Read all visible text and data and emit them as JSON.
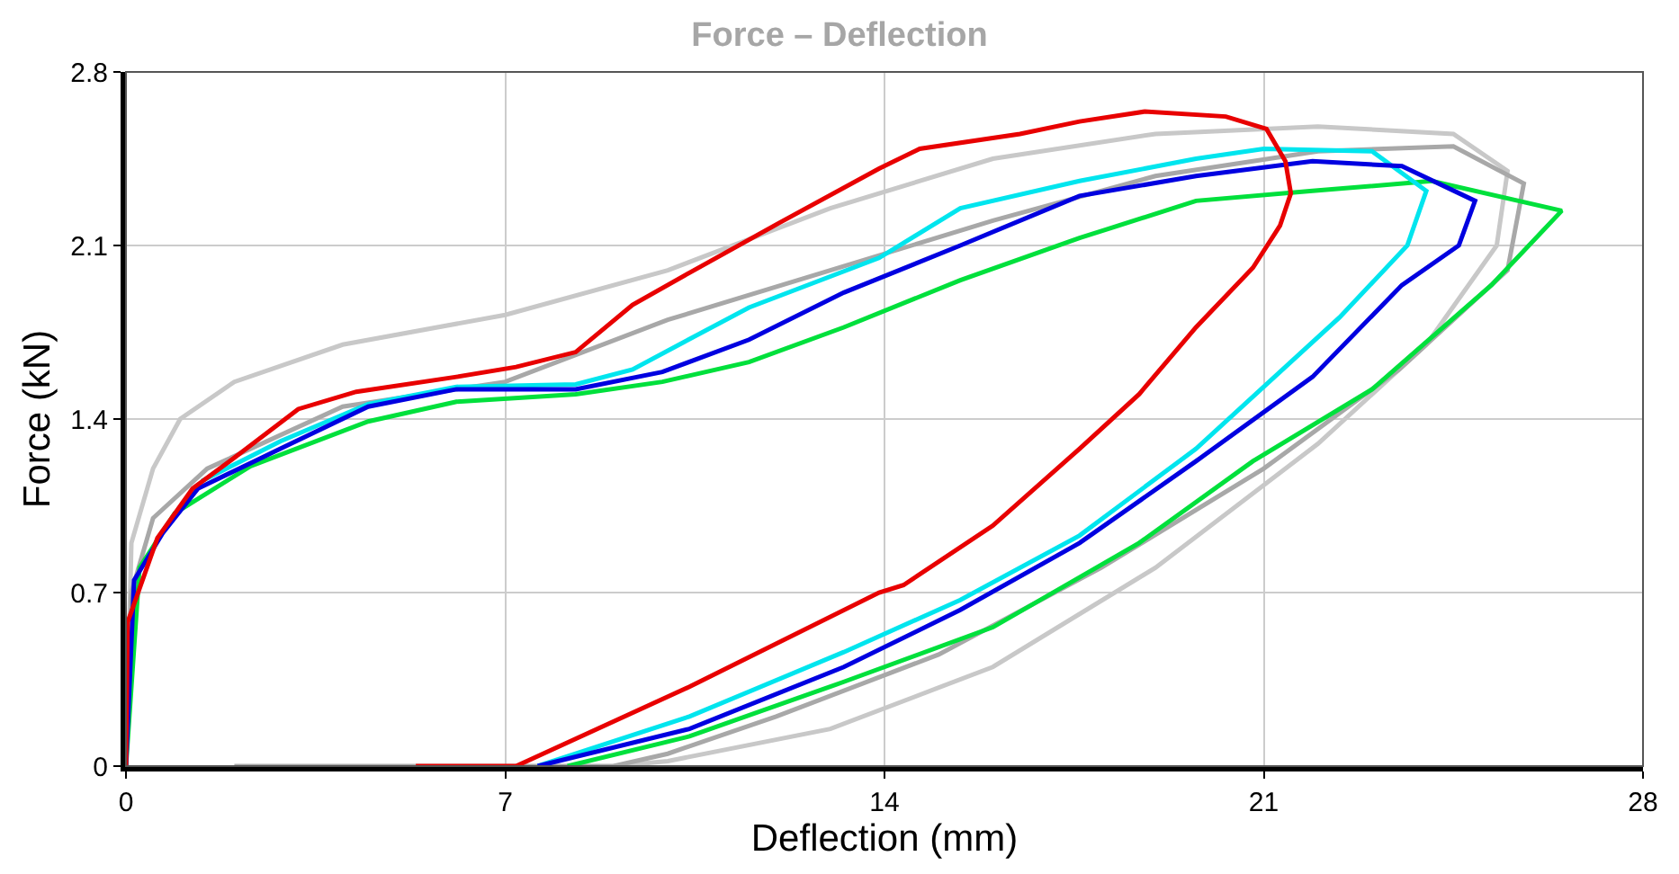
{
  "chart_data": {
    "type": "line",
    "title": "Force – Deflection",
    "xlabel": "Deflection (mm)",
    "ylabel": "Force (kN)",
    "xlim": [
      0,
      28
    ],
    "ylim": [
      0,
      2.8
    ],
    "xticks": [
      0,
      7,
      14,
      21,
      28
    ],
    "yticks": [
      0,
      0.7,
      1.4,
      2.1,
      2.8
    ],
    "grid": true,
    "marker": "none",
    "line_style": "solid",
    "series": [
      {
        "color": "#c8c8c8",
        "x": [
          0,
          0.1,
          0.5,
          1,
          2,
          4,
          7,
          10,
          13,
          16,
          19,
          22,
          24.5,
          25.5,
          25.3,
          24,
          22,
          19,
          16,
          13,
          10,
          9
        ],
        "values": [
          0,
          0.9,
          1.2,
          1.4,
          1.55,
          1.7,
          1.82,
          2.0,
          2.25,
          2.45,
          2.55,
          2.58,
          2.55,
          2.4,
          2.1,
          1.7,
          1.3,
          0.8,
          0.4,
          0.15,
          0.02,
          0
        ]
      },
      {
        "color": "#a8a8a8",
        "x": [
          0,
          0.1,
          0.5,
          1.5,
          4,
          7,
          10,
          13,
          16,
          19,
          22,
          24.5,
          25.8,
          25.5,
          23.5,
          21,
          18,
          15,
          12,
          10,
          9,
          2
        ],
        "values": [
          0,
          0.7,
          1.0,
          1.2,
          1.45,
          1.55,
          1.8,
          2.0,
          2.2,
          2.38,
          2.48,
          2.5,
          2.35,
          2.0,
          1.6,
          1.2,
          0.8,
          0.45,
          0.2,
          0.05,
          0,
          0
        ]
      },
      {
        "color": "#00e03c",
        "x": [
          0,
          0.25,
          0.9,
          2.3,
          4.47,
          6.1,
          8.3,
          9.9,
          11.5,
          13.25,
          15.4,
          17.6,
          19.75,
          21.9,
          24.1,
          26.5,
          25.2,
          23.0,
          20.8,
          18.7,
          16.0,
          13.25,
          10.4,
          8.15
        ],
        "values": [
          0,
          0.8,
          1.02,
          1.21,
          1.39,
          1.47,
          1.5,
          1.55,
          1.63,
          1.77,
          1.96,
          2.13,
          2.28,
          2.32,
          2.36,
          2.24,
          1.94,
          1.52,
          1.23,
          0.9,
          0.56,
          0.34,
          0.12,
          0
        ]
      },
      {
        "color": "#00e5ee",
        "x": [
          1.4,
          2.85,
          4.47,
          6.1,
          8.3,
          9.35,
          11.5,
          13.9,
          15.4,
          17.6,
          19.75,
          21.0,
          23.0,
          24.0,
          23.65,
          22.4,
          19.75,
          17.6,
          15.4,
          13.25,
          10.4,
          7.6
        ],
        "values": [
          1.15,
          1.31,
          1.46,
          1.53,
          1.54,
          1.6,
          1.85,
          2.05,
          2.25,
          2.36,
          2.45,
          2.49,
          2.48,
          2.32,
          2.1,
          1.81,
          1.28,
          0.93,
          0.67,
          0.46,
          0.2,
          0
        ]
      },
      {
        "color": "#0000e0",
        "x": [
          0,
          0.15,
          0.68,
          1.33,
          2.85,
          4.47,
          6.1,
          8.3,
          9.9,
          11.5,
          13.25,
          15.4,
          17.6,
          19.75,
          21.9,
          23.55,
          24.9,
          24.6,
          23.55,
          21.9,
          19.75,
          17.6,
          15.4,
          13.25,
          10.4,
          7.6
        ],
        "values": [
          0,
          0.75,
          0.94,
          1.12,
          1.28,
          1.45,
          1.52,
          1.52,
          1.59,
          1.72,
          1.91,
          2.1,
          2.3,
          2.38,
          2.44,
          2.42,
          2.28,
          2.1,
          1.94,
          1.57,
          1.23,
          0.9,
          0.63,
          0.4,
          0.15,
          0
        ]
      },
      {
        "color": "#e80000",
        "x": [
          0,
          0.03,
          0.58,
          1.23,
          2.1,
          3.18,
          4.25,
          6.1,
          7.2,
          8.3,
          9.35,
          10.4,
          12.05,
          13.9,
          14.65,
          16.5,
          17.6,
          18.8,
          20.3,
          21.05,
          21.4,
          21.5,
          21.3,
          20.8,
          19.75,
          18.7,
          17.6,
          16.0,
          14.35,
          13.9,
          10.4,
          7.2,
          5.35
        ],
        "values": [
          0,
          0.58,
          0.92,
          1.12,
          1.26,
          1.44,
          1.51,
          1.57,
          1.61,
          1.67,
          1.86,
          1.99,
          2.19,
          2.41,
          2.49,
          2.55,
          2.6,
          2.64,
          2.62,
          2.57,
          2.44,
          2.31,
          2.18,
          2.01,
          1.77,
          1.5,
          1.28,
          0.97,
          0.73,
          0.7,
          0.32,
          0,
          0
        ]
      }
    ]
  }
}
